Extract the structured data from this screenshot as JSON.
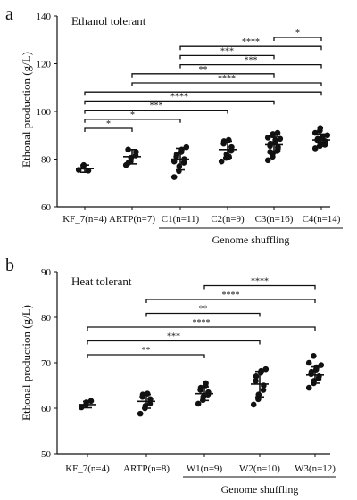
{
  "chart_data": [
    {
      "type": "scatter",
      "panel_label": "a",
      "annotation": "Ethanol tolerant",
      "ylabel": "Ethonal production (g/L)",
      "ylim": [
        60,
        140
      ],
      "yticks": [
        60,
        80,
        100,
        120,
        140
      ],
      "categories": [
        "KF_7(n=4)",
        "ARTP(n=7)",
        "C1(n=11)",
        "C2(n=9)",
        "C3(n=16)",
        "C4(n=14)"
      ],
      "group_label": "Genome shuffling",
      "group_span": [
        2,
        5
      ],
      "means": [
        76,
        81,
        80,
        84,
        86,
        88
      ],
      "sd": [
        1.5,
        3,
        4.5,
        3.5,
        3.5,
        2.5
      ],
      "points": [
        [
          75.5,
          76.8,
          77.5,
          75.2
        ],
        [
          77.5,
          79,
          80.5,
          81.5,
          83,
          84,
          78.5
        ],
        [
          72.5,
          75,
          77,
          78.5,
          80,
          81,
          82,
          83,
          84,
          85,
          79
        ],
        [
          79,
          80.5,
          82,
          83.5,
          85,
          86.5,
          87.5,
          88,
          81
        ],
        [
          79.5,
          81,
          82.5,
          83.5,
          84.5,
          85.5,
          86.5,
          87,
          88,
          88.5,
          89,
          90,
          90.5,
          91,
          85,
          83
        ],
        [
          84.5,
          85.5,
          86.5,
          87,
          87.5,
          88,
          88.5,
          89,
          89.5,
          90,
          91,
          92,
          93,
          86
        ]
      ],
      "comparisons": [
        {
          "from": 4,
          "to": 5,
          "label": "*"
        },
        {
          "from": 2,
          "to": 5,
          "label": "****"
        },
        {
          "from": 2,
          "to": 4,
          "label": "***"
        },
        {
          "from": 2,
          "to": 5,
          "label": "***"
        },
        {
          "from": 1,
          "to": 4,
          "label": "**"
        },
        {
          "from": 1,
          "to": 5,
          "label": "****"
        },
        {
          "from": 0,
          "to": 5,
          "label": ""
        },
        {
          "from": 0,
          "to": 4,
          "label": "****"
        },
        {
          "from": 0,
          "to": 3,
          "label": "***"
        },
        {
          "from": 0,
          "to": 2,
          "label": "*"
        },
        {
          "from": 0,
          "to": 1,
          "label": "*"
        }
      ]
    },
    {
      "type": "scatter",
      "panel_label": "b",
      "annotation": "Heat tolerant",
      "ylabel": "Ethonal production (g/L)",
      "ylim": [
        50,
        90
      ],
      "yticks": [
        50,
        60,
        70,
        80,
        90
      ],
      "categories": [
        "KF_7(n=4)",
        "ARTP(n=8)",
        "W1(n=9)",
        "W2(n=10)",
        "W3(n=12)"
      ],
      "group_label": "Genome shuffling",
      "group_span": [
        2,
        4
      ],
      "means": [
        60.8,
        61.5,
        63.2,
        65.3,
        67.3
      ],
      "sd": [
        0.7,
        1.5,
        1.5,
        2.8,
        1.8
      ],
      "points": [
        [
          60.2,
          60.8,
          61.3,
          61.6
        ],
        [
          58.8,
          60,
          60.5,
          61,
          62,
          62.5,
          63,
          63.2
        ],
        [
          61,
          61.8,
          62.5,
          63,
          63.5,
          64,
          64.5,
          65,
          65.5
        ],
        [
          60.8,
          62,
          63,
          64,
          65,
          66,
          67,
          67.8,
          68.2,
          68.6
        ],
        [
          64.5,
          65.5,
          66,
          66.5,
          67,
          67.5,
          68,
          68.5,
          69,
          69.5,
          70,
          71.5
        ]
      ],
      "comparisons": [
        {
          "from": 2,
          "to": 4,
          "label": "****"
        },
        {
          "from": 1,
          "to": 4,
          "label": "****"
        },
        {
          "from": 1,
          "to": 3,
          "label": "**"
        },
        {
          "from": 0,
          "to": 4,
          "label": "****"
        },
        {
          "from": 0,
          "to": 3,
          "label": "***"
        },
        {
          "from": 0,
          "to": 2,
          "label": "**"
        }
      ]
    }
  ]
}
